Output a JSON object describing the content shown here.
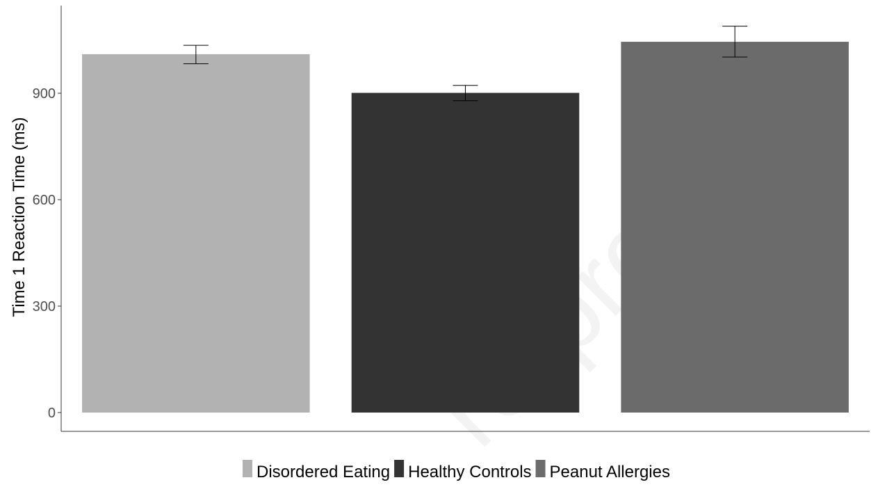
{
  "chart_data": {
    "type": "bar",
    "categories": [
      "Disordered Eating",
      "Healthy Controls",
      "Peanut Allergies"
    ],
    "values": [
      1010,
      901,
      1045
    ],
    "error_bars": [
      {
        "low": 983,
        "high": 1035
      },
      {
        "low": 879,
        "high": 922
      },
      {
        "low": 1002,
        "high": 1089
      }
    ],
    "colors": [
      "#b2b2b2",
      "#333333",
      "#6b6b6b"
    ],
    "ylabel": "Time 1 Reaction Time (ms)",
    "xlabel": "",
    "ylim": [
      0,
      1130
    ],
    "yticks": [
      0,
      300,
      600,
      900
    ],
    "grid": false,
    "legend": {
      "placement": "bottom",
      "entries": [
        "Disordered Eating",
        "Healthy Controls",
        "Peanut Allergies"
      ]
    },
    "watermark": "re-proof"
  }
}
